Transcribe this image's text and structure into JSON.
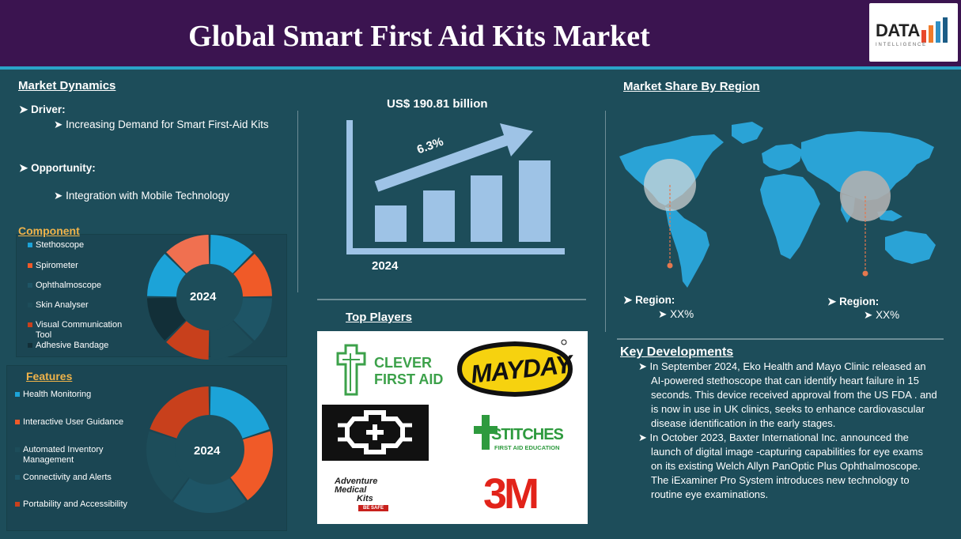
{
  "header": {
    "title": "Global Smart First Aid Kits Market",
    "logo_text": "DATA",
    "logo_sub": "INTELLIGENCE"
  },
  "dynamics": {
    "title": "Market Dynamics",
    "driver_label": "Driver:",
    "driver_item": "Increasing Demand for Smart First-Aid Kits",
    "opportunity_label": "Opportunity:",
    "opportunity_item": "Integration with Mobile Technology"
  },
  "component": {
    "title": "Component",
    "center_label": "2024",
    "items": [
      {
        "label": "Stethoscope",
        "color": "#1ca3d8"
      },
      {
        "label": "Spirometer",
        "color": "#f05a28"
      },
      {
        "label": "Ophthalmoscope",
        "color": "#1e5566"
      },
      {
        "label": "Skin Analyser",
        "color": "#1d4d5a"
      },
      {
        "label": "Visual Communication Tool",
        "color": "#c8401c"
      },
      {
        "label": "Adhesive Bandage",
        "color": "#122f38"
      }
    ]
  },
  "features": {
    "title": "Features",
    "center_label": "2024",
    "items": [
      {
        "label": "Health Monitoring",
        "color": "#1ca3d8"
      },
      {
        "label": "Interactive User Guidance",
        "color": "#f05a28"
      },
      {
        "label": "Automated Inventory Management",
        "color": "#1d4d5a"
      },
      {
        "label": "Connectivity and Alerts",
        "color": "#1e5566"
      },
      {
        "label": "Portability and Accessibility",
        "color": "#c8401c"
      }
    ]
  },
  "market": {
    "value": "US$ 190.81 billion",
    "cagr": "6.3%",
    "year": "2024"
  },
  "players": {
    "title": "Top Players",
    "clever_line1": "CLEVER",
    "clever_line2": "FIRST AID",
    "mayday": "MAYDAY",
    "stitches_line1": "STITCHES",
    "stitches_line2": "FIRST AID EDUCATION",
    "adventure_line1": "Adventure",
    "adventure_line2": "Medical",
    "adventure_line3": "Kits",
    "adventure_tag": "BE SAFE",
    "threem": "3M"
  },
  "region": {
    "title": "Market Share By Region",
    "left_label": "Region:",
    "left_value": "XX%",
    "right_label": "Region:",
    "right_value": "XX%"
  },
  "key_developments": {
    "title": "Key Developments",
    "items": [
      "In September 2024, Eko Health and Mayo Clinic released an AI-powered stethoscope that can identify heart failure in 15 seconds. This device received approval from the US FDA . and is now in use in UK clinics, seeks to enhance cardiovascular disease identification in the early stages.",
      "In October 2023, Baxter International Inc. announced the launch of digital image -capturing capabilities for eye exams on its existing Welch Allyn PanOptic Plus Ophthalmoscope. The iExaminer Pro System introduces new technology to routine eye examinations."
    ]
  }
}
